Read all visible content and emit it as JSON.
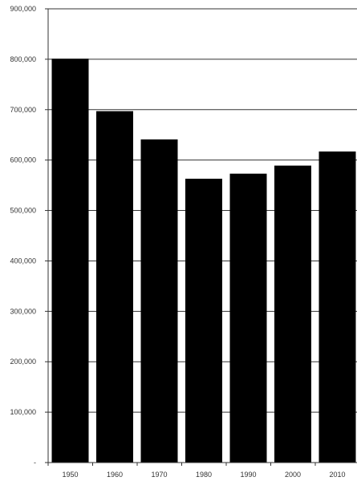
{
  "chart_data": {
    "type": "bar",
    "title": "",
    "xlabel": "",
    "ylabel": "",
    "categories": [
      "1950",
      "1960",
      "1970",
      "1980",
      "1990",
      "2000",
      "2010"
    ],
    "values": [
      801000,
      697000,
      641000,
      563000,
      573000,
      589000,
      617000
    ],
    "ylim": [
      0,
      900000
    ],
    "y_ticks": [
      {
        "value": 0,
        "label": "-"
      },
      {
        "value": 100000,
        "label": "100,000"
      },
      {
        "value": 200000,
        "label": "200,000"
      },
      {
        "value": 300000,
        "label": "300,000"
      },
      {
        "value": 400000,
        "label": "400,000"
      },
      {
        "value": 500000,
        "label": "500,000"
      },
      {
        "value": 600000,
        "label": "600,000"
      },
      {
        "value": 700000,
        "label": "700,000"
      },
      {
        "value": 800000,
        "label": "800,000"
      },
      {
        "value": 900000,
        "label": "900,000"
      }
    ],
    "grid": true,
    "legend": "none",
    "colors": {
      "bar": "#000000",
      "grid": "#333333",
      "background": "#ffffff"
    }
  }
}
